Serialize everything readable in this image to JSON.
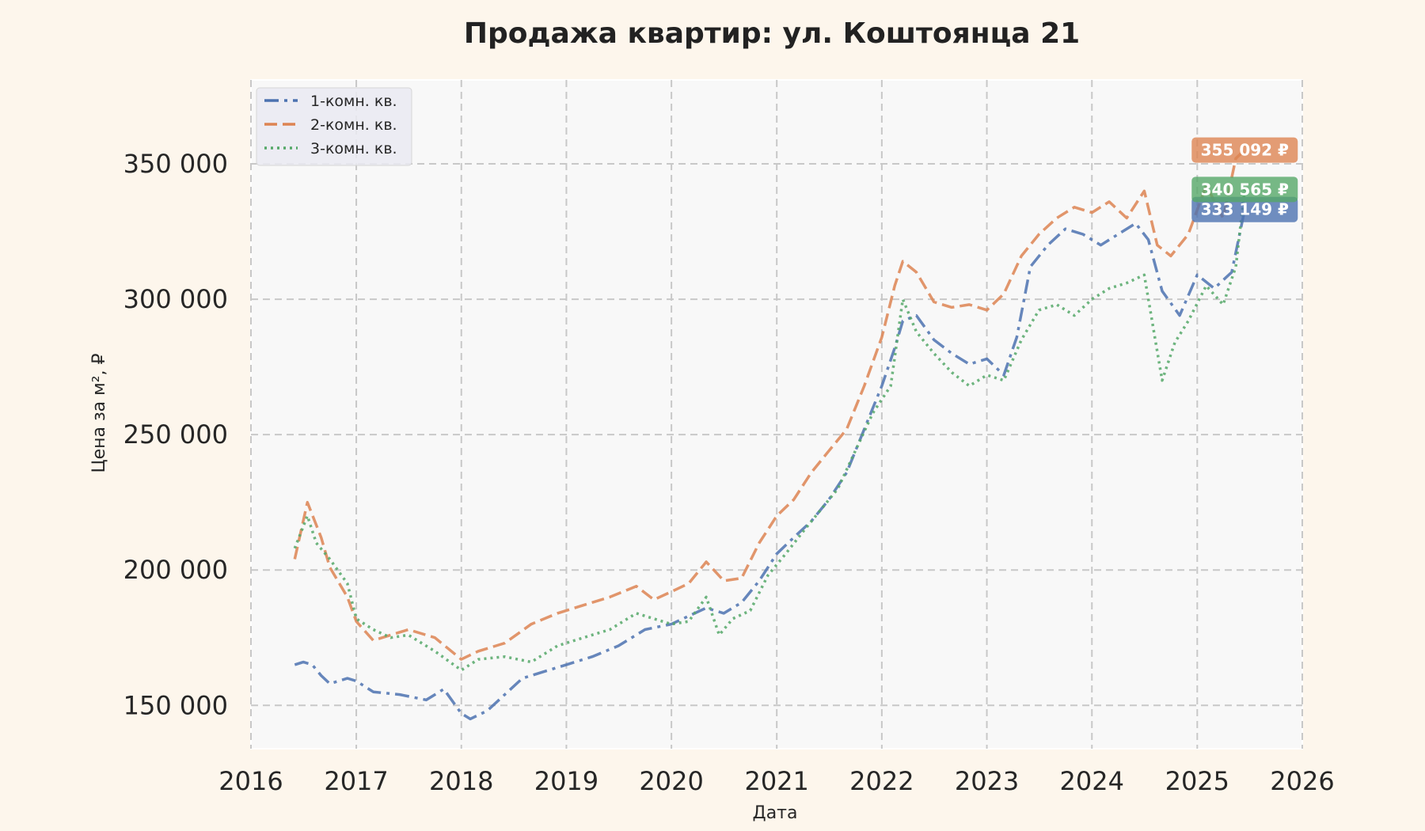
{
  "chart_data": {
    "type": "line",
    "title": "Продажа квартир: ул. Коштоянца 21",
    "xlabel": "Дата",
    "ylabel": "Цена за м², ₽",
    "xlim": [
      "2016-01-01",
      "2026-01-01"
    ],
    "ylim": [
      134000,
      381000
    ],
    "x_ticks": [
      "2016",
      "2017",
      "2018",
      "2019",
      "2020",
      "2021",
      "2022",
      "2023",
      "2024",
      "2025",
      "2026"
    ],
    "y_ticks": [
      "150 000",
      "200 000",
      "250 000",
      "300 000",
      "350 000"
    ],
    "y_tick_values": [
      150000,
      200000,
      250000,
      300000,
      350000
    ],
    "grid": true,
    "legend_position": "top-left",
    "series": [
      {
        "name": "1-комн. кв.",
        "color": "#4c72b0",
        "line_style": "dashdot",
        "end_label": "333 149 ₽",
        "end_value": 333149,
        "points": [
          [
            "2016-06-01",
            165000
          ],
          [
            "2016-07-01",
            166000
          ],
          [
            "2016-08-01",
            165000
          ],
          [
            "2016-09-01",
            161000
          ],
          [
            "2016-10-01",
            158000
          ],
          [
            "2016-12-01",
            160000
          ],
          [
            "2017-01-01",
            159000
          ],
          [
            "2017-03-01",
            155000
          ],
          [
            "2017-06-01",
            154000
          ],
          [
            "2017-09-01",
            152000
          ],
          [
            "2017-11-01",
            156000
          ],
          [
            "2018-01-01",
            147000
          ],
          [
            "2018-02-01",
            145000
          ],
          [
            "2018-04-01",
            148000
          ],
          [
            "2018-06-01",
            154000
          ],
          [
            "2018-08-01",
            160000
          ],
          [
            "2018-10-01",
            162000
          ],
          [
            "2019-01-01",
            165000
          ],
          [
            "2019-04-01",
            168000
          ],
          [
            "2019-07-01",
            172000
          ],
          [
            "2019-10-01",
            178000
          ],
          [
            "2020-01-01",
            180000
          ],
          [
            "2020-03-01",
            183000
          ],
          [
            "2020-05-01",
            186000
          ],
          [
            "2020-07-01",
            184000
          ],
          [
            "2020-09-01",
            188000
          ],
          [
            "2020-11-01",
            196000
          ],
          [
            "2021-01-01",
            206000
          ],
          [
            "2021-03-01",
            212000
          ],
          [
            "2021-05-01",
            218000
          ],
          [
            "2021-07-01",
            226000
          ],
          [
            "2021-09-01",
            236000
          ],
          [
            "2021-11-01",
            252000
          ],
          [
            "2022-01-01",
            268000
          ],
          [
            "2022-02-15",
            282000
          ],
          [
            "2022-03-15",
            292000
          ],
          [
            "2022-05-01",
            294000
          ],
          [
            "2022-07-01",
            285000
          ],
          [
            "2022-09-01",
            280000
          ],
          [
            "2022-11-01",
            276000
          ],
          [
            "2023-01-01",
            278000
          ],
          [
            "2023-03-01",
            272000
          ],
          [
            "2023-04-15",
            286000
          ],
          [
            "2023-06-01",
            312000
          ],
          [
            "2023-08-01",
            320000
          ],
          [
            "2023-10-01",
            326000
          ],
          [
            "2023-12-01",
            324000
          ],
          [
            "2024-02-01",
            320000
          ],
          [
            "2024-04-01",
            324000
          ],
          [
            "2024-06-01",
            328000
          ],
          [
            "2024-07-15",
            322000
          ],
          [
            "2024-09-01",
            303000
          ],
          [
            "2024-11-01",
            294000
          ],
          [
            "2025-01-01",
            309000
          ],
          [
            "2025-03-01",
            304000
          ],
          [
            "2025-05-01",
            310000
          ],
          [
            "2025-06-15",
            333149
          ]
        ]
      },
      {
        "name": "2-комн. кв.",
        "color": "#dd8452",
        "line_style": "dashed",
        "end_label": "355 092 ₽",
        "end_value": 355092,
        "points": [
          [
            "2016-06-01",
            204000
          ],
          [
            "2016-07-15",
            225000
          ],
          [
            "2016-09-01",
            212000
          ],
          [
            "2016-10-01",
            201000
          ],
          [
            "2016-12-01",
            190000
          ],
          [
            "2017-01-01",
            181000
          ],
          [
            "2017-03-01",
            174000
          ],
          [
            "2017-05-01",
            176000
          ],
          [
            "2017-07-01",
            178000
          ],
          [
            "2017-10-01",
            175000
          ],
          [
            "2018-01-01",
            167000
          ],
          [
            "2018-03-01",
            170000
          ],
          [
            "2018-06-01",
            173000
          ],
          [
            "2018-09-01",
            180000
          ],
          [
            "2018-12-01",
            184000
          ],
          [
            "2019-03-01",
            187000
          ],
          [
            "2019-06-01",
            190000
          ],
          [
            "2019-09-01",
            194000
          ],
          [
            "2019-11-01",
            189000
          ],
          [
            "2020-01-01",
            192000
          ],
          [
            "2020-03-01",
            195000
          ],
          [
            "2020-05-01",
            203000
          ],
          [
            "2020-07-01",
            196000
          ],
          [
            "2020-09-01",
            197000
          ],
          [
            "2020-11-01",
            210000
          ],
          [
            "2021-01-01",
            220000
          ],
          [
            "2021-03-01",
            226000
          ],
          [
            "2021-05-01",
            236000
          ],
          [
            "2021-07-01",
            244000
          ],
          [
            "2021-09-01",
            252000
          ],
          [
            "2021-11-01",
            268000
          ],
          [
            "2022-01-01",
            286000
          ],
          [
            "2022-02-15",
            305000
          ],
          [
            "2022-03-15",
            314000
          ],
          [
            "2022-05-01",
            310000
          ],
          [
            "2022-07-01",
            299000
          ],
          [
            "2022-09-01",
            297000
          ],
          [
            "2022-11-01",
            298000
          ],
          [
            "2023-01-01",
            296000
          ],
          [
            "2023-03-01",
            302000
          ],
          [
            "2023-05-01",
            316000
          ],
          [
            "2023-07-01",
            324000
          ],
          [
            "2023-09-01",
            330000
          ],
          [
            "2023-11-01",
            334000
          ],
          [
            "2024-01-01",
            332000
          ],
          [
            "2024-03-01",
            336000
          ],
          [
            "2024-05-01",
            330000
          ],
          [
            "2024-07-01",
            340000
          ],
          [
            "2024-08-15",
            320000
          ],
          [
            "2024-10-01",
            316000
          ],
          [
            "2024-12-01",
            324000
          ],
          [
            "2025-02-01",
            342000
          ],
          [
            "2025-04-01",
            330000
          ],
          [
            "2025-05-15",
            352000
          ],
          [
            "2025-06-15",
            355092
          ]
        ]
      },
      {
        "name": "3-комн. кв.",
        "color": "#55a868",
        "line_style": "dotted",
        "end_label": "340 565 ₽",
        "end_value": 340565,
        "points": [
          [
            "2016-06-01",
            208000
          ],
          [
            "2016-07-15",
            220000
          ],
          [
            "2016-08-15",
            210000
          ],
          [
            "2016-10-01",
            204000
          ],
          [
            "2016-12-01",
            195000
          ],
          [
            "2017-01-01",
            182000
          ],
          [
            "2017-03-01",
            178000
          ],
          [
            "2017-05-01",
            175000
          ],
          [
            "2017-07-01",
            176000
          ],
          [
            "2017-10-01",
            170000
          ],
          [
            "2018-01-01",
            163000
          ],
          [
            "2018-03-01",
            167000
          ],
          [
            "2018-06-01",
            168000
          ],
          [
            "2018-09-01",
            166000
          ],
          [
            "2018-12-01",
            172000
          ],
          [
            "2019-03-01",
            175000
          ],
          [
            "2019-06-01",
            178000
          ],
          [
            "2019-09-01",
            184000
          ],
          [
            "2019-11-01",
            182000
          ],
          [
            "2020-01-01",
            180000
          ],
          [
            "2020-03-01",
            181000
          ],
          [
            "2020-05-01",
            190000
          ],
          [
            "2020-06-15",
            176000
          ],
          [
            "2020-08-01",
            182000
          ],
          [
            "2020-10-01",
            185000
          ],
          [
            "2020-12-01",
            198000
          ],
          [
            "2021-02-01",
            206000
          ],
          [
            "2021-04-01",
            214000
          ],
          [
            "2021-06-01",
            222000
          ],
          [
            "2021-08-01",
            230000
          ],
          [
            "2021-10-01",
            244000
          ],
          [
            "2021-12-01",
            258000
          ],
          [
            "2022-02-01",
            268000
          ],
          [
            "2022-03-15",
            300000
          ],
          [
            "2022-05-01",
            288000
          ],
          [
            "2022-07-01",
            280000
          ],
          [
            "2022-09-01",
            273000
          ],
          [
            "2022-11-01",
            268000
          ],
          [
            "2023-01-01",
            272000
          ],
          [
            "2023-03-01",
            270000
          ],
          [
            "2023-05-01",
            285000
          ],
          [
            "2023-07-01",
            296000
          ],
          [
            "2023-09-01",
            298000
          ],
          [
            "2023-11-01",
            294000
          ],
          [
            "2024-01-01",
            300000
          ],
          [
            "2024-03-01",
            304000
          ],
          [
            "2024-05-01",
            306000
          ],
          [
            "2024-07-01",
            309000
          ],
          [
            "2024-09-01",
            270000
          ],
          [
            "2024-10-15",
            284000
          ],
          [
            "2024-12-01",
            292000
          ],
          [
            "2025-02-01",
            305000
          ],
          [
            "2025-04-01",
            298000
          ],
          [
            "2025-05-15",
            312000
          ],
          [
            "2025-06-15",
            340565
          ]
        ]
      }
    ]
  }
}
